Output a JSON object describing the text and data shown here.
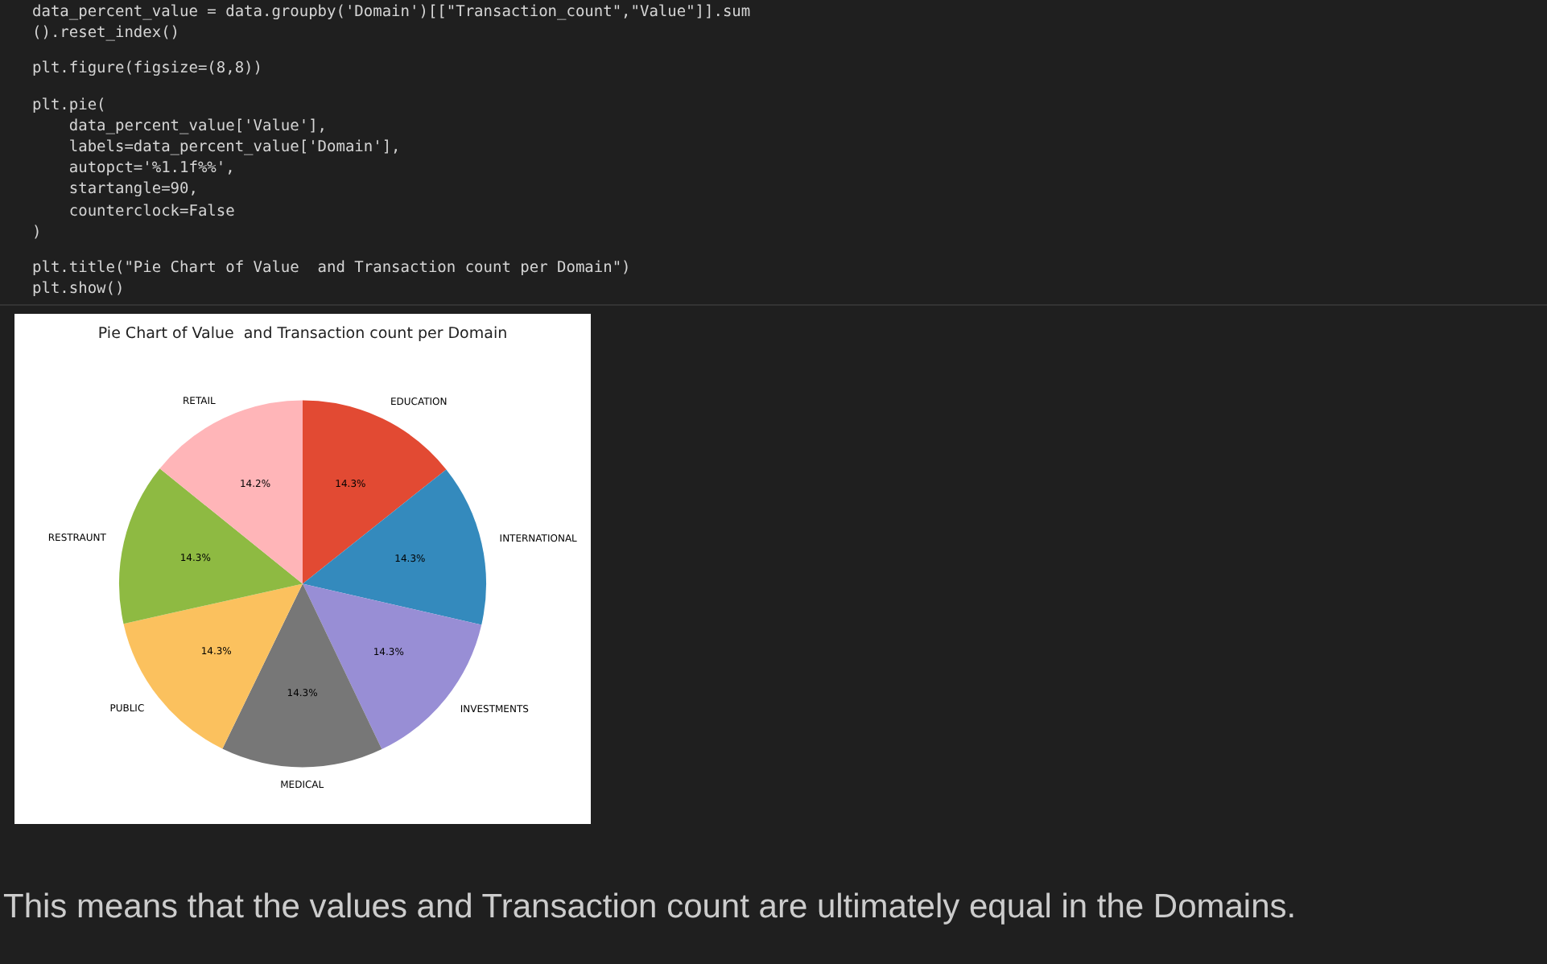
{
  "chart_data": {
    "type": "pie",
    "title": "Pie Chart of Value  and Transaction count per Domain",
    "categories": [
      "EDUCATION",
      "INTERNATIONAL",
      "INVESTMENTS",
      "MEDICAL",
      "PUBLIC",
      "RESTRAUNT",
      "RETAIL"
    ],
    "values": [
      14.3,
      14.3,
      14.3,
      14.3,
      14.3,
      14.3,
      14.2
    ],
    "value_labels": [
      "14.3%",
      "14.3%",
      "14.3%",
      "14.3%",
      "14.3%",
      "14.3%",
      "14.2%"
    ],
    "colors": [
      "#e24a33",
      "#348abd",
      "#988ed5",
      "#777777",
      "#fbc15e",
      "#8eba42",
      "#ffb5b8"
    ],
    "annotations": [
      "data_percent_value = data.groupby('Domain')[[\"Transaction_count\",\"Value\"]].sum",
      "().reset_index()",
      "plt.figure(figsize=(8,8))",
      "plt.pie(",
      "    data_percent_value['Value'],",
      "    labels=data_percent_value['Domain'],",
      "    autopct='%1.1f%%',",
      "    startangle=90,",
      "    counterclock=False",
      ")",
      "plt.title(\"Pie Chart of Value  and Transaction count per Domain\")",
      "plt.show()",
      "This means that the values and Transaction count are ultimately equal in the Domains."
    ]
  }
}
